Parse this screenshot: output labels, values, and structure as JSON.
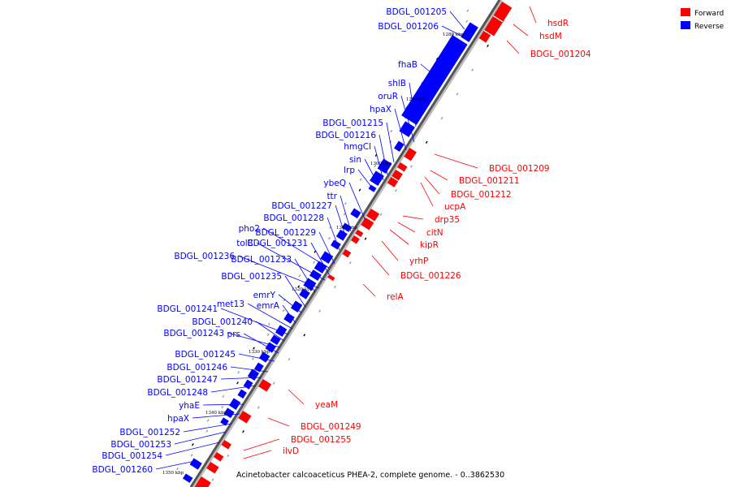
{
  "caption": "Acinetobacter calcoaceticus PHEA-2, complete genome. - 0..3862530",
  "legend": [
    {
      "label": "Forward",
      "color": "#ff0000"
    },
    {
      "label": "Reverse",
      "color": "#0000ff"
    }
  ],
  "ticks": [
    "1280 kbp",
    "1290 kbp",
    "1300 kbp",
    "1310 kbp",
    "1320 kbp",
    "1330 kbp",
    "1340 kbp",
    "1350 kbp"
  ],
  "genes": [
    {
      "name": "hsdR",
      "strand": "forward"
    },
    {
      "name": "hsdM",
      "strand": "forward"
    },
    {
      "name": "BDGL_001204",
      "strand": "forward"
    },
    {
      "name": "BDGL_001205",
      "strand": "reverse"
    },
    {
      "name": "BDGL_001206",
      "strand": "reverse"
    },
    {
      "name": "fhaB",
      "strand": "reverse"
    },
    {
      "name": "shlB",
      "strand": "reverse"
    },
    {
      "name": "oruR",
      "strand": "reverse"
    },
    {
      "name": "hpaX",
      "strand": "reverse"
    },
    {
      "name": "BDGL_001215",
      "strand": "reverse"
    },
    {
      "name": "BDGL_001216",
      "strand": "reverse"
    },
    {
      "name": "hmgCl",
      "strand": "reverse"
    },
    {
      "name": "sin",
      "strand": "reverse"
    },
    {
      "name": "lrp",
      "strand": "reverse"
    },
    {
      "name": "BDGL_001209",
      "strand": "forward"
    },
    {
      "name": "BDGL_001211",
      "strand": "forward"
    },
    {
      "name": "BDGL_001212",
      "strand": "forward"
    },
    {
      "name": "ybeQ",
      "strand": "reverse"
    },
    {
      "name": "ucpA",
      "strand": "forward"
    },
    {
      "name": "ttr",
      "strand": "reverse"
    },
    {
      "name": "BDGL_001227",
      "strand": "reverse"
    },
    {
      "name": "drp35",
      "strand": "forward"
    },
    {
      "name": "BDGL_001228",
      "strand": "reverse"
    },
    {
      "name": "citN",
      "strand": "forward"
    },
    {
      "name": "pho2",
      "strand": "reverse"
    },
    {
      "name": "BDGL_001229",
      "strand": "reverse"
    },
    {
      "name": "kipR",
      "strand": "forward"
    },
    {
      "name": "tolC",
      "strand": "reverse"
    },
    {
      "name": "BDGL_001231",
      "strand": "reverse"
    },
    {
      "name": "yrhP",
      "strand": "forward"
    },
    {
      "name": "BDGL_001236",
      "strand": "reverse"
    },
    {
      "name": "BDGL_001233",
      "strand": "reverse"
    },
    {
      "name": "BDGL_001226",
      "strand": "forward"
    },
    {
      "name": "BDGL_001235",
      "strand": "reverse"
    },
    {
      "name": "emrY",
      "strand": "reverse"
    },
    {
      "name": "relA",
      "strand": "forward"
    },
    {
      "name": "met13",
      "strand": "reverse"
    },
    {
      "name": "emrA",
      "strand": "reverse"
    },
    {
      "name": "BDGL_001241",
      "strand": "reverse"
    },
    {
      "name": "BDGL_001240",
      "strand": "reverse"
    },
    {
      "name": "BDGL_001243",
      "strand": "reverse"
    },
    {
      "name": "prs",
      "strand": "reverse"
    },
    {
      "name": "BDGL_001245",
      "strand": "reverse"
    },
    {
      "name": "BDGL_001246",
      "strand": "reverse"
    },
    {
      "name": "BDGL_001247",
      "strand": "reverse"
    },
    {
      "name": "BDGL_001248",
      "strand": "reverse"
    },
    {
      "name": "yeaM",
      "strand": "forward"
    },
    {
      "name": "yhaE",
      "strand": "reverse"
    },
    {
      "name": "hpaX",
      "strand": "reverse"
    },
    {
      "name": "BDGL_001249",
      "strand": "forward"
    },
    {
      "name": "BDGL_001252",
      "strand": "reverse"
    },
    {
      "name": "BDGL_001255",
      "strand": "forward"
    },
    {
      "name": "BDGL_001253",
      "strand": "reverse"
    },
    {
      "name": "ilvD",
      "strand": "forward"
    },
    {
      "name": "BDGL_001254",
      "strand": "reverse"
    },
    {
      "name": "BDGL_001260",
      "strand": "reverse"
    }
  ]
}
